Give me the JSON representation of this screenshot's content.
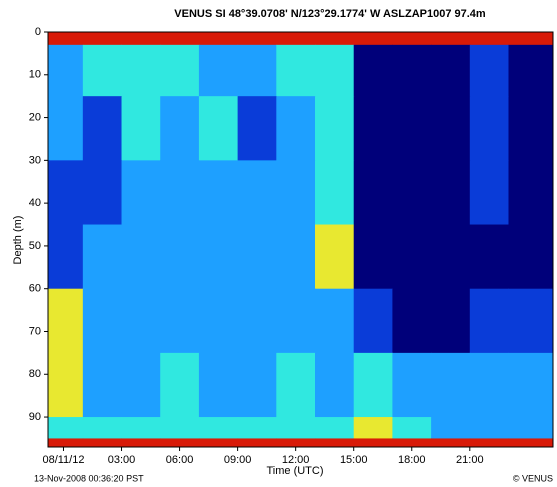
{
  "chart_data": {
    "type": "heatmap",
    "title": "VENUS   SI   48°39.0708' N/123°29.1774' W   ASLZAP1007   97.4m",
    "x_label": "Time (UTC)",
    "y_label": "Depth (m)",
    "footer_left": "13-Nov-2008 00:36:20 PST",
    "footer_right": "© VENUS",
    "xlim": [
      -0.8,
      25.3
    ],
    "ylim": [
      97,
      0
    ],
    "xticks": [
      {
        "value": 0,
        "label": "08/11/12"
      },
      {
        "value": 3,
        "label": "03:00"
      },
      {
        "value": 6,
        "label": "06:00"
      },
      {
        "value": 9,
        "label": "09:00"
      },
      {
        "value": 12,
        "label": "12:00"
      },
      {
        "value": 15,
        "label": "15:00"
      },
      {
        "value": 18,
        "label": "18:00"
      },
      {
        "value": 21,
        "label": "21:00"
      }
    ],
    "yticks": [
      0,
      10,
      20,
      30,
      40,
      50,
      60,
      70,
      80,
      90
    ],
    "xbins": [
      -0.8,
      1,
      3,
      5,
      7,
      9,
      11,
      13,
      15,
      17,
      19,
      21,
      23,
      25.3
    ],
    "ybins": [
      0,
      3,
      15,
      30,
      45,
      60,
      75,
      90,
      95,
      97
    ],
    "colorscale": [
      "#00007a",
      "#0a3cd8",
      "#1ea0ff",
      "#30e8e0",
      "#e8e830",
      "#d81a08"
    ],
    "values": [
      [
        5,
        5,
        5,
        5,
        5,
        5,
        5,
        5,
        5,
        5,
        5,
        5,
        5
      ],
      [
        2,
        3,
        3,
        3,
        2,
        2,
        3,
        3,
        0,
        0,
        0,
        1,
        0
      ],
      [
        2,
        1,
        3,
        2,
        3,
        1,
        2,
        3,
        0,
        0,
        0,
        1,
        0
      ],
      [
        1,
        1,
        2,
        2,
        2,
        2,
        2,
        3,
        0,
        0,
        0,
        1,
        0
      ],
      [
        1,
        2,
        2,
        2,
        2,
        2,
        2,
        4,
        0,
        0,
        0,
        0,
        0
      ],
      [
        4,
        2,
        2,
        2,
        2,
        2,
        2,
        2,
        1,
        0,
        0,
        1,
        1
      ],
      [
        4,
        2,
        2,
        3,
        2,
        2,
        3,
        2,
        3,
        2,
        2,
        2,
        2
      ],
      [
        3,
        3,
        3,
        3,
        3,
        3,
        3,
        3,
        4,
        3,
        2,
        2,
        2
      ],
      [
        5,
        5,
        5,
        5,
        5,
        5,
        5,
        5,
        5,
        5,
        5,
        5,
        5
      ]
    ]
  }
}
